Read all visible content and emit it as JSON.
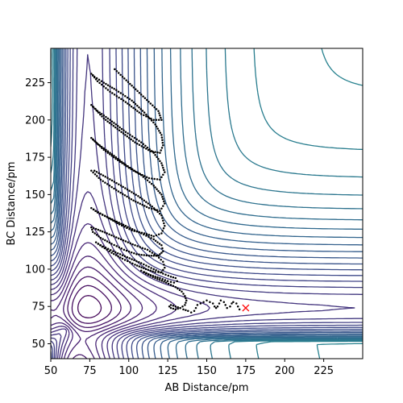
{
  "chart_data": {
    "type": "contour",
    "xlabel": "AB Distance/pm",
    "ylabel": "BC Distance/pm",
    "xlim": [
      50,
      250
    ],
    "ylim": [
      40,
      248
    ],
    "x_ticks": [
      50,
      75,
      100,
      125,
      150,
      175,
      200,
      225
    ],
    "y_ticks": [
      50,
      75,
      100,
      125,
      150,
      175,
      200,
      225
    ],
    "grid": false,
    "contour_colormap": "viridis",
    "trajectory": {
      "color": "#000000",
      "points": [
        [
          91,
          234
        ],
        [
          96,
          229
        ],
        [
          102,
          223
        ],
        [
          108,
          217
        ],
        [
          114,
          211
        ],
        [
          119,
          206
        ],
        [
          121,
          200
        ],
        [
          116,
          200
        ],
        [
          108,
          204
        ],
        [
          98,
          212
        ],
        [
          88,
          219
        ],
        [
          80,
          226
        ],
        [
          76,
          231
        ],
        [
          78,
          229
        ],
        [
          84,
          225
        ],
        [
          92,
          220
        ],
        [
          102,
          213
        ],
        [
          110,
          205
        ],
        [
          117,
          197
        ],
        [
          121,
          190
        ],
        [
          122,
          183
        ],
        [
          120,
          178
        ],
        [
          114,
          179
        ],
        [
          104,
          185
        ],
        [
          94,
          193
        ],
        [
          84,
          201
        ],
        [
          77,
          209
        ],
        [
          76,
          210
        ],
        [
          80,
          206
        ],
        [
          88,
          200
        ],
        [
          98,
          192
        ],
        [
          108,
          185
        ],
        [
          116,
          178
        ],
        [
          121,
          171
        ],
        [
          123,
          165
        ],
        [
          120,
          160
        ],
        [
          113,
          161
        ],
        [
          103,
          166
        ],
        [
          93,
          173
        ],
        [
          84,
          180
        ],
        [
          77,
          187
        ],
        [
          76,
          188
        ],
        [
          80,
          184
        ],
        [
          88,
          178
        ],
        [
          98,
          170
        ],
        [
          108,
          163
        ],
        [
          116,
          156
        ],
        [
          121,
          150
        ],
        [
          123,
          144
        ],
        [
          120,
          139
        ],
        [
          113,
          141
        ],
        [
          103,
          146
        ],
        [
          92,
          153
        ],
        [
          82,
          160
        ],
        [
          76,
          166
        ],
        [
          78,
          166
        ],
        [
          85,
          162
        ],
        [
          95,
          156
        ],
        [
          106,
          149
        ],
        [
          115,
          142
        ],
        [
          121,
          136
        ],
        [
          123,
          129
        ],
        [
          121,
          124
        ],
        [
          116,
          122
        ],
        [
          110,
          124
        ],
        [
          102,
          126
        ],
        [
          94,
          130
        ],
        [
          86,
          135
        ],
        [
          79,
          139
        ],
        [
          76,
          141
        ],
        [
          80,
          138
        ],
        [
          88,
          134
        ],
        [
          98,
          129
        ],
        [
          108,
          124
        ],
        [
          116,
          120
        ],
        [
          121,
          116
        ],
        [
          122,
          112
        ],
        [
          119,
          109
        ],
        [
          113,
          109
        ],
        [
          105,
          110
        ],
        [
          97,
          113
        ],
        [
          89,
          117
        ],
        [
          82,
          121
        ],
        [
          77,
          125
        ],
        [
          76,
          128
        ],
        [
          79,
          127
        ],
        [
          86,
          124
        ],
        [
          95,
          120
        ],
        [
          104,
          116
        ],
        [
          112,
          113
        ],
        [
          118,
          109
        ],
        [
          122,
          105
        ],
        [
          123,
          101
        ],
        [
          121,
          98
        ],
        [
          117,
          98
        ],
        [
          111,
          100
        ],
        [
          104,
          103
        ],
        [
          96,
          107
        ],
        [
          89,
          111
        ],
        [
          83,
          115
        ],
        [
          79,
          118
        ],
        [
          82,
          116
        ],
        [
          90,
          112
        ],
        [
          99,
          108
        ],
        [
          108,
          104
        ],
        [
          116,
          100
        ],
        [
          122,
          97
        ],
        [
          127,
          95
        ],
        [
          130,
          94
        ],
        [
          131,
          92
        ],
        [
          129,
          91
        ],
        [
          125,
          92
        ],
        [
          120,
          94
        ],
        [
          114,
          96
        ],
        [
          110,
          98
        ],
        [
          108,
          99
        ],
        [
          111,
          97
        ],
        [
          117,
          94
        ],
        [
          124,
          91
        ],
        [
          130,
          88
        ],
        [
          134,
          85
        ],
        [
          136,
          82
        ],
        [
          137,
          79
        ],
        [
          136,
          76
        ],
        [
          133,
          74
        ],
        [
          130,
          73
        ],
        [
          127,
          74
        ],
        [
          126,
          75
        ],
        [
          127,
          76
        ],
        [
          130,
          75
        ],
        [
          133,
          74
        ],
        [
          135,
          73
        ],
        [
          138,
          72
        ],
        [
          140,
          71
        ],
        [
          142,
          72
        ],
        [
          143,
          74
        ],
        [
          144,
          76
        ],
        [
          146,
          77
        ],
        [
          148,
          78
        ],
        [
          150,
          79
        ],
        [
          152,
          78
        ],
        [
          154,
          77
        ],
        [
          155,
          75
        ],
        [
          156,
          74
        ],
        [
          157,
          75
        ],
        [
          158,
          77
        ],
        [
          159,
          79
        ],
        [
          161,
          78
        ],
        [
          162,
          76
        ],
        [
          163,
          74
        ],
        [
          165,
          75
        ],
        [
          166,
          77
        ],
        [
          167,
          78
        ],
        [
          169,
          77
        ],
        [
          170,
          75
        ],
        [
          171,
          73
        ],
        [
          172,
          74
        ]
      ]
    },
    "marker": {
      "symbol": "x",
      "color": "#ff0000",
      "x": 175,
      "y": 74
    }
  }
}
